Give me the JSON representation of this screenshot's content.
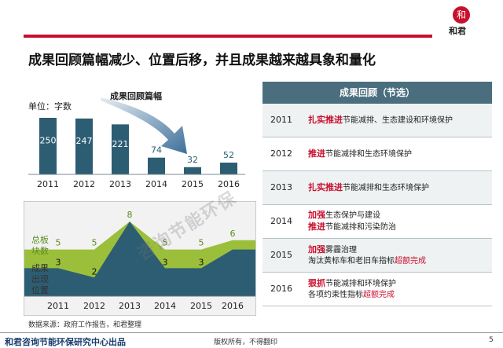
{
  "logo": {
    "mark": "和",
    "name": "和君"
  },
  "title": "成果回顾篇幅减少、位置后移，并且成果越来越具象和量化",
  "chart_data": [
    {
      "type": "bar",
      "title": "成果回顾篇幅",
      "unit_label": "单位：字数",
      "categories": [
        "2011",
        "2012",
        "2013",
        "2014",
        "2015",
        "2016"
      ],
      "values": [
        250,
        247,
        221,
        74,
        32,
        52
      ],
      "ylim": [
        0,
        260
      ],
      "color": "#2c5d73"
    },
    {
      "type": "area",
      "categories": [
        "2011",
        "2012",
        "2013",
        "2014",
        "2015",
        "2016"
      ],
      "series": [
        {
          "name": "总板块数",
          "values": [
            5,
            5,
            8,
            5,
            5,
            6
          ],
          "color": "#9bbf3b"
        },
        {
          "name": "成果出现位置",
          "values": [
            3,
            2,
            8,
            3,
            3,
            5
          ],
          "value_labels": [
            "3",
            "2",
            "",
            "3",
            "3",
            ""
          ],
          "color": "#2c5d73"
        }
      ],
      "ylim": [
        0,
        9
      ]
    }
  ],
  "panel": {
    "header": "成果回顾（节选）",
    "rows": [
      {
        "year": "2011",
        "lines": [
          {
            "kw": "扎实推进",
            "text": "节能减排、生态建设和环境保护",
            "hl": "",
            "tail": ""
          }
        ]
      },
      {
        "year": "2012",
        "lines": [
          {
            "kw": "推进",
            "text": "节能减排和生态环境保护",
            "hl": "",
            "tail": ""
          }
        ]
      },
      {
        "year": "2013",
        "lines": [
          {
            "kw": "扎实推进",
            "text": "节能减排和生态环境保护",
            "hl": "",
            "tail": ""
          }
        ]
      },
      {
        "year": "2014",
        "lines": [
          {
            "kw": "加强",
            "text": "生态保护与建设",
            "hl": "",
            "tail": ""
          },
          {
            "kw": "推进",
            "text": "节能减排和污染防治",
            "hl": "",
            "tail": ""
          }
        ]
      },
      {
        "year": "2015",
        "lines": [
          {
            "kw": "加强",
            "text": "雾霾治理",
            "hl": "",
            "tail": ""
          },
          {
            "kw": "",
            "text": "淘汰黄标车和老旧车指标",
            "hl": "超额完成",
            "tail": ""
          }
        ]
      },
      {
        "year": "2016",
        "lines": [
          {
            "kw": "狠抓",
            "text": "节能减排和环境保护",
            "hl": "",
            "tail": ""
          },
          {
            "kw": "",
            "text": "各项约束性指标",
            "hl": "超额完成",
            "tail": ""
          }
        ]
      }
    ]
  },
  "source": "数据来源：政府工作报告，和君整理",
  "watermark": "咨询节能环保",
  "footer": {
    "left": "和君咨询节能环保研究中心出品",
    "mid": "版权所有，不得翻印",
    "page": "5"
  }
}
